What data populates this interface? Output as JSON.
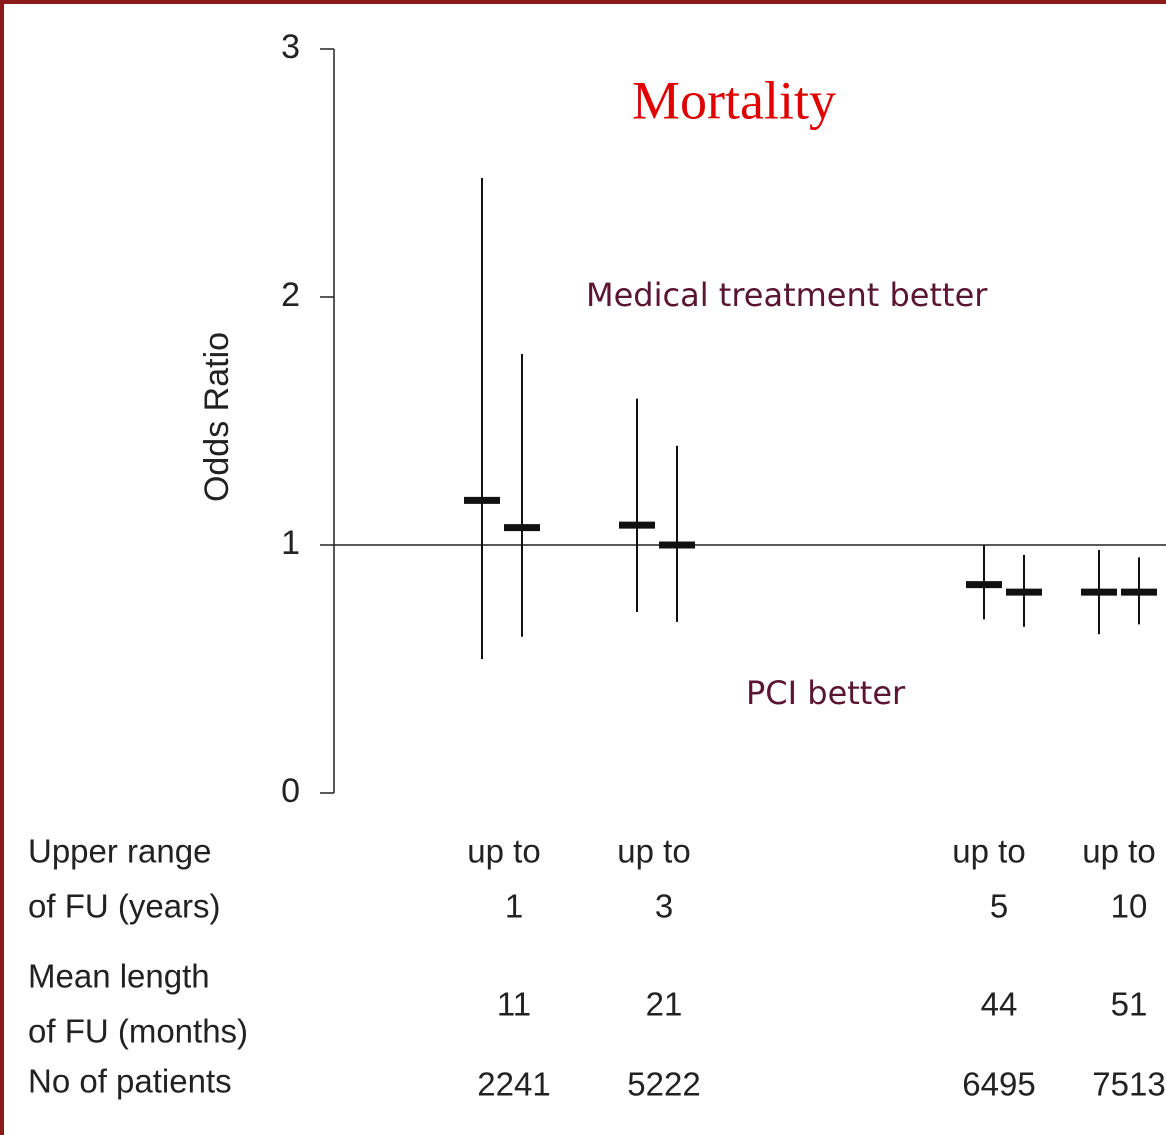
{
  "chart_data": {
    "type": "errorbar",
    "title": "Mortality",
    "y_label": "Odds Ratio",
    "annotations": [
      "Medical treatment better",
      "PCI better"
    ],
    "ylim": [
      0,
      3
    ],
    "yticks": [
      0,
      1,
      2,
      3
    ],
    "reference_line": 1,
    "color": "#111111",
    "series": [
      {
        "values": [
          1.18,
          1.07,
          1.08,
          1.0,
          0.84,
          0.81,
          0.81,
          0.81
        ],
        "lower": [
          0.54,
          0.63,
          0.73,
          0.69,
          0.7,
          0.67,
          0.64,
          0.68
        ],
        "upper": [
          2.48,
          1.77,
          1.59,
          1.4,
          1.0,
          0.96,
          0.98,
          0.95
        ]
      }
    ],
    "table": {
      "row_labels": [
        [
          "Upper range",
          "of FU (years)"
        ],
        [
          "Mean length",
          "of FU (months)"
        ],
        [
          "No of patients"
        ]
      ],
      "upper_range": [
        [
          "up to",
          "1"
        ],
        [
          "up to",
          "3"
        ],
        [
          "up to",
          "5"
        ],
        [
          "up to",
          "10"
        ]
      ],
      "mean_length": [
        11,
        21,
        44,
        51
      ],
      "patients": [
        2241,
        5222,
        6495,
        7513
      ]
    }
  }
}
